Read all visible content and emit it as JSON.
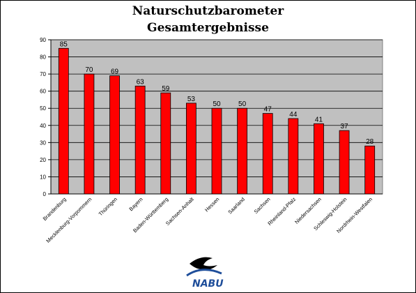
{
  "chart_data": {
    "type": "bar",
    "title": "Naturschutzbarometer",
    "subtitle": "Gesamtergebnisse",
    "categories": [
      "Brandenburg",
      "Mecklenburg-Vorpommern",
      "Thüringen",
      "Bayern",
      "Baden-Württemberg",
      "Sachsen-Anhalt",
      "Hessen",
      "Saarland",
      "Sachsen",
      "Rheinland-Pfalz",
      "Niedersachsen",
      "Schleswig-Holstein",
      "Nordrhein-Westfalen"
    ],
    "values": [
      85,
      70,
      69,
      63,
      59,
      53,
      50,
      50,
      47,
      44,
      41,
      37,
      28
    ],
    "ylim": [
      0,
      90
    ],
    "yticks": [
      0,
      10,
      20,
      30,
      40,
      50,
      60,
      70,
      80,
      90
    ],
    "xlabel": "",
    "ylabel": "",
    "grid": true,
    "bar_color": "#ff0000",
    "plot_background": "#c0c0c0"
  },
  "logo": {
    "text": "NABU"
  }
}
